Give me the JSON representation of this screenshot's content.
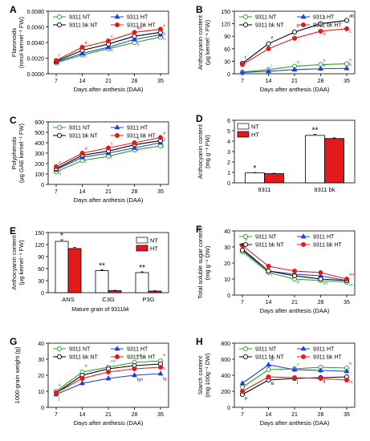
{
  "figure": {
    "title": "",
    "colors": {
      "NT": "#2ca02c",
      "HT": "#1f3fd6",
      "bkNT": "#000000",
      "bkHT": "#e31a1c",
      "bar_NT": "#ffffff",
      "bar_HT": "#e31a1c"
    }
  },
  "chart_data": [
    {
      "panel": "A",
      "type": "line",
      "ylabel_lines": [
        "Flavonoids",
        "(nmol kernel⁻¹ FW)"
      ],
      "xlabel": "Days after anthesis (DAA)",
      "x": [
        7,
        14,
        21,
        28,
        35
      ],
      "ylim": [
        0,
        0.008
      ],
      "yticks": [
        "0.0000",
        "0.0020",
        "0.0040",
        "0.0060",
        "0.0080"
      ],
      "ytick_values": [
        0,
        0.002,
        0.004,
        0.006,
        0.008
      ],
      "legend": [
        "9311 NT",
        "9311 HT",
        "9311 bk NT",
        "9311 bk HT"
      ],
      "series": [
        {
          "name": "9311 NT",
          "key": "NT",
          "marker": "circle-open",
          "values": [
            0.0014,
            0.0024,
            0.0032,
            0.004,
            0.0047
          ]
        },
        {
          "name": "9311 HT",
          "key": "HT",
          "marker": "triangle",
          "values": [
            0.0015,
            0.0026,
            0.0034,
            0.0044,
            0.005
          ]
        },
        {
          "name": "9311 bk NT",
          "key": "bkNT",
          "marker": "circle-open",
          "values": [
            0.0016,
            0.003,
            0.0038,
            0.0048,
            0.0053
          ]
        },
        {
          "name": "9311 bk HT",
          "key": "bkHT",
          "marker": "circle",
          "values": [
            0.0017,
            0.0034,
            0.0042,
            0.0053,
            0.0057
          ]
        }
      ],
      "letters": [
        {
          "x": 7,
          "y": 0.0021,
          "text": "f",
          "key": "bkHT"
        },
        {
          "x": 14,
          "y": 0.0038,
          "text": "d",
          "key": "bkHT"
        },
        {
          "x": 21,
          "y": 0.0046,
          "text": "c",
          "key": "bkHT"
        },
        {
          "x": 28,
          "y": 0.0057,
          "text": "ab",
          "key": "bkHT"
        },
        {
          "x": 35,
          "y": 0.006,
          "text": "a",
          "key": "bkHT"
        },
        {
          "x": 35,
          "y": 0.005,
          "text": "a",
          "key": "HT"
        },
        {
          "x": 35,
          "y": 0.0043,
          "text": "b",
          "key": "NT"
        },
        {
          "x": 28,
          "y": 0.0036,
          "text": "b",
          "key": "NT"
        },
        {
          "x": 21,
          "y": 0.0028,
          "text": "e",
          "key": "NT"
        },
        {
          "x": 14,
          "y": 0.002,
          "text": "f",
          "key": "NT"
        },
        {
          "x": 7,
          "y": 0.001,
          "text": "f",
          "key": "NT"
        }
      ]
    },
    {
      "panel": "B",
      "type": "line",
      "ylabel_lines": [
        "Anthocyanin content",
        "(μg kernel⁻¹ FW)"
      ],
      "xlabel": "Days after anthesis (DAA)",
      "x": [
        7,
        14,
        21,
        28,
        35
      ],
      "ylim": [
        0,
        150
      ],
      "yticks": [
        "0",
        "30",
        "60",
        "90",
        "120",
        "150"
      ],
      "ytick_values": [
        0,
        30,
        60,
        90,
        120,
        150
      ],
      "legend": [
        "9311 NT",
        "9311 HT",
        "9311 bk NT",
        "9311 bk HT"
      ],
      "series": [
        {
          "name": "9311 NT",
          "key": "NT",
          "marker": "circle-open",
          "values": [
            4,
            10,
            18,
            22,
            24
          ]
        },
        {
          "name": "9311 HT",
          "key": "HT",
          "marker": "triangle",
          "values": [
            3,
            6,
            10,
            12,
            13
          ]
        },
        {
          "name": "9311 bk NT",
          "key": "bkNT",
          "marker": "circle-open",
          "values": [
            25,
            72,
            100,
            120,
            128
          ]
        },
        {
          "name": "9311 bk HT",
          "key": "bkHT",
          "marker": "circle",
          "values": [
            22,
            60,
            85,
            102,
            108
          ]
        }
      ],
      "letters": [
        {
          "x": 7,
          "y": 36,
          "text": "f",
          "key": "bkNT"
        },
        {
          "x": 14,
          "y": 84,
          "text": "e",
          "key": "bkNT"
        },
        {
          "x": 21,
          "y": 112,
          "text": "c",
          "key": "bkNT"
        },
        {
          "x": 28,
          "y": 132,
          "text": "b",
          "key": "bkNT"
        },
        {
          "x": 35,
          "y": 136,
          "text": "ab",
          "key": "bkNT"
        },
        {
          "x": 28,
          "y": 92,
          "text": "d",
          "key": "bkHT"
        },
        {
          "x": 35,
          "y": 98,
          "text": "c",
          "key": "bkHT"
        },
        {
          "x": 35,
          "y": 30,
          "text": "h",
          "key": "NT"
        },
        {
          "x": 28,
          "y": 28,
          "text": "h",
          "key": "NT"
        },
        {
          "x": 21,
          "y": 24,
          "text": "h",
          "key": "NT"
        },
        {
          "x": 14,
          "y": 16,
          "text": "i",
          "key": "NT"
        },
        {
          "x": 35,
          "y": 18,
          "text": "h",
          "key": "HT"
        },
        {
          "x": 28,
          "y": 16,
          "text": "h",
          "key": "HT"
        }
      ]
    },
    {
      "panel": "C",
      "type": "line",
      "ylabel_lines": [
        "Polyphenols",
        "(μg GAE kernel⁻¹ FW)"
      ],
      "xlabel": "Days after anthesis (DAA)",
      "x": [
        7,
        14,
        21,
        28,
        35
      ],
      "ylim": [
        0,
        600
      ],
      "yticks": [
        "0",
        "100",
        "200",
        "300",
        "400",
        "500",
        "600"
      ],
      "ytick_values": [
        0,
        100,
        200,
        300,
        400,
        500,
        600
      ],
      "legend": [
        "9311 NT",
        "9311 HT",
        "9311 bk NT",
        "9311 bk HT"
      ],
      "series": [
        {
          "name": "9311 NT",
          "key": "NT",
          "marker": "circle-open",
          "values": [
            120,
            230,
            270,
            330,
            370
          ]
        },
        {
          "name": "9311 HT",
          "key": "HT",
          "marker": "triangle",
          "values": [
            140,
            260,
            300,
            350,
            400
          ]
        },
        {
          "name": "9311 bk NT",
          "key": "bkNT",
          "marker": "circle-open",
          "values": [
            150,
            280,
            320,
            380,
            420
          ]
        },
        {
          "name": "9311 bk HT",
          "key": "bkHT",
          "marker": "circle",
          "values": [
            170,
            300,
            350,
            400,
            450
          ]
        }
      ],
      "letters": [
        {
          "x": 7,
          "y": 200,
          "text": "e",
          "key": "bkHT"
        },
        {
          "x": 14,
          "y": 330,
          "text": "d",
          "key": "bkHT"
        },
        {
          "x": 21,
          "y": 380,
          "text": "c",
          "key": "bkHT"
        },
        {
          "x": 28,
          "y": 430,
          "text": "b",
          "key": "bkHT"
        },
        {
          "x": 35,
          "y": 480,
          "text": "a",
          "key": "bkHT"
        },
        {
          "x": 35,
          "y": 420,
          "text": "g",
          "key": "HT"
        },
        {
          "x": 7,
          "y": 95,
          "text": "g",
          "key": "NT"
        },
        {
          "x": 14,
          "y": 205,
          "text": "f",
          "key": "NT"
        },
        {
          "x": 21,
          "y": 245,
          "text": "f",
          "key": "NT"
        },
        {
          "x": 28,
          "y": 305,
          "text": "f",
          "key": "NT"
        },
        {
          "x": 35,
          "y": 345,
          "text": "f",
          "key": "NT"
        }
      ]
    },
    {
      "panel": "D",
      "type": "bar",
      "ylabel_lines": [
        "Anthocyanin content",
        "(mg g⁻¹ FW)"
      ],
      "xlabel": "",
      "categories": [
        "9311",
        "9311 bk"
      ],
      "ylim": [
        0,
        6
      ],
      "yticks": [
        "0",
        "1",
        "2",
        "3",
        "4",
        "5",
        "6"
      ],
      "ytick_values": [
        0,
        1,
        2,
        3,
        4,
        5,
        6
      ],
      "legend": [
        "NT",
        "HT"
      ],
      "series": [
        {
          "name": "NT",
          "key": "bar_NT",
          "values": [
            0.95,
            4.55
          ],
          "err": [
            0.04,
            0.1
          ]
        },
        {
          "name": "HT",
          "key": "bar_HT",
          "values": [
            0.88,
            4.25
          ],
          "err": [
            0.04,
            0.06
          ]
        }
      ],
      "stars": [
        "*",
        "**"
      ]
    },
    {
      "panel": "E",
      "type": "bar",
      "ylabel_lines": [
        "Anthocyanin content",
        "(μg kernel⁻¹ FW)"
      ],
      "xlabel": "Mature grain of 9311bk",
      "categories": [
        "ANS",
        "C3G",
        "P3G"
      ],
      "ylim": [
        0,
        150
      ],
      "yticks": [
        "0",
        "30",
        "60",
        "90",
        "120",
        "150"
      ],
      "ytick_values": [
        0,
        30,
        60,
        90,
        120,
        150
      ],
      "legend": [
        "NT",
        "HT"
      ],
      "series": [
        {
          "name": "NT",
          "key": "bar_NT",
          "values": [
            128,
            55,
            50
          ],
          "err": [
            4,
            2,
            2
          ]
        },
        {
          "name": "HT",
          "key": "bar_HT",
          "values": [
            110,
            5,
            4
          ],
          "err": [
            3,
            1,
            1
          ]
        }
      ],
      "stars": [
        "*",
        "**",
        "**"
      ]
    },
    {
      "panel": "F",
      "type": "line",
      "ylabel_lines": [
        "Total soluble sugar content",
        "(mg g⁻¹ DW)"
      ],
      "xlabel": "Days after anthesis (DAA)",
      "x": [
        7,
        14,
        21,
        28,
        35
      ],
      "ylim": [
        0,
        40
      ],
      "yticks": [
        "0",
        "10",
        "20",
        "30",
        "40"
      ],
      "ytick_values": [
        0,
        10,
        20,
        30,
        40
      ],
      "legend": [
        "9311 NT",
        "9311 HT",
        "9311 bk NT",
        "9311 bk HT"
      ],
      "series": [
        {
          "name": "9311 NT",
          "key": "NT",
          "marker": "circle-open",
          "values": [
            27,
            14,
            10,
            9,
            8
          ]
        },
        {
          "name": "9311 HT",
          "key": "HT",
          "marker": "triangle",
          "values": [
            29,
            15,
            13,
            12,
            9
          ]
        },
        {
          "name": "9311 bk NT",
          "key": "bkNT",
          "marker": "circle-open",
          "values": [
            28,
            15,
            12,
            10,
            9
          ]
        },
        {
          "name": "9311 bk HT",
          "key": "bkHT",
          "marker": "circle",
          "values": [
            31,
            18,
            15,
            14,
            10
          ]
        }
      ],
      "letters": [
        {
          "x": 7,
          "y": 34,
          "text": "a",
          "key": "bkHT"
        },
        {
          "x": 14,
          "y": 12,
          "text": "j",
          "key": "NT"
        },
        {
          "x": 21,
          "y": 7.5,
          "text": "p",
          "key": "NT"
        },
        {
          "x": 28,
          "y": 6.5,
          "text": "lm",
          "key": "NT"
        },
        {
          "x": 35,
          "y": 5.5,
          "text": "m",
          "key": "NT"
        },
        {
          "x": 35,
          "y": 12,
          "text": "mn",
          "key": "bkHT"
        }
      ]
    },
    {
      "panel": "G",
      "type": "line",
      "ylabel_lines": [
        "1000-grain weight (g)"
      ],
      "xlabel": "Days after anthesis (DAA)",
      "x": [
        7,
        14,
        21,
        28,
        35
      ],
      "ylim": [
        0,
        40
      ],
      "yticks": [
        "0",
        "10",
        "20",
        "30",
        "40"
      ],
      "ytick_values": [
        0,
        10,
        20,
        30,
        40
      ],
      "legend": [
        "9311 NT",
        "9311 HT",
        "9311 bk NT",
        "9311 bk HT"
      ],
      "series": [
        {
          "name": "9311 NT",
          "key": "NT",
          "marker": "circle-open",
          "values": [
            10,
            22,
            25,
            28,
            29
          ]
        },
        {
          "name": "9311 HT",
          "key": "HT",
          "marker": "triangle",
          "values": [
            8,
            15,
            18,
            20,
            21
          ]
        },
        {
          "name": "9311 bk NT",
          "key": "bkNT",
          "marker": "circle-open",
          "values": [
            9,
            20,
            24,
            26,
            27
          ]
        },
        {
          "name": "9311 bk HT",
          "key": "bkHT",
          "marker": "circle",
          "values": [
            9,
            18,
            22,
            24,
            25
          ]
        }
      ],
      "letters": [
        {
          "x": 7,
          "y": 13,
          "text": "k",
          "key": "NT"
        },
        {
          "x": 14,
          "y": 25,
          "text": "d",
          "key": "NT"
        },
        {
          "x": 21,
          "y": 28,
          "text": "cd",
          "key": "NT"
        },
        {
          "x": 28,
          "y": 31.5,
          "text": "ab",
          "key": "NT"
        },
        {
          "x": 35,
          "y": 32,
          "text": "a",
          "key": "NT"
        },
        {
          "x": 35,
          "y": 23.5,
          "text": "b",
          "key": "bkHT"
        },
        {
          "x": 28,
          "y": 16.5,
          "text": "fgh",
          "key": "HT"
        },
        {
          "x": 35,
          "y": 17,
          "text": "fg",
          "key": "HT"
        },
        {
          "x": 7,
          "y": 4.5,
          "text": "j",
          "key": "HT"
        }
      ]
    },
    {
      "panel": "H",
      "type": "line",
      "ylabel_lines": [
        "Starch content",
        "(mg 100g⁻¹ DW)"
      ],
      "xlabel": "Days after anthesis (DAA)",
      "x": [
        7,
        14,
        21,
        28,
        35
      ],
      "ylim": [
        0,
        800
      ],
      "yticks": [
        "0",
        "200",
        "400",
        "600",
        "800"
      ],
      "ytick_values": [
        0,
        200,
        400,
        600,
        800
      ],
      "legend": [
        "9311 NT",
        "9311 HT",
        "9311 bk NT",
        "9311 bk HT"
      ],
      "series": [
        {
          "name": "9311 NT",
          "key": "NT",
          "marker": "circle-open",
          "values": [
            250,
            470,
            480,
            500,
            490
          ]
        },
        {
          "name": "9311 HT",
          "key": "HT",
          "marker": "triangle",
          "values": [
            300,
            530,
            470,
            460,
            450
          ]
        },
        {
          "name": "9311 bk NT",
          "key": "bkNT",
          "marker": "circle-open",
          "values": [
            160,
            340,
            360,
            370,
            380
          ]
        },
        {
          "name": "9311 bk HT",
          "key": "bkHT",
          "marker": "circle",
          "values": [
            200,
            380,
            370,
            360,
            340
          ]
        }
      ],
      "letters": [
        {
          "x": 7,
          "y": 100,
          "text": "p",
          "key": "bkNT"
        },
        {
          "x": 14,
          "y": 280,
          "text": "kl",
          "key": "bkNT"
        },
        {
          "x": 21,
          "y": 300,
          "text": "j",
          "key": "bkNT"
        },
        {
          "x": 28,
          "y": 310,
          "text": "ij",
          "key": "bkNT"
        },
        {
          "x": 35,
          "y": 300,
          "text": "m",
          "key": "bkHT"
        },
        {
          "x": 35,
          "y": 530,
          "text": "b",
          "key": "NT"
        },
        {
          "x": 21,
          "y": 520,
          "text": "c",
          "key": "NT"
        },
        {
          "x": 14,
          "y": 580,
          "text": "a",
          "key": "HT"
        }
      ]
    }
  ]
}
